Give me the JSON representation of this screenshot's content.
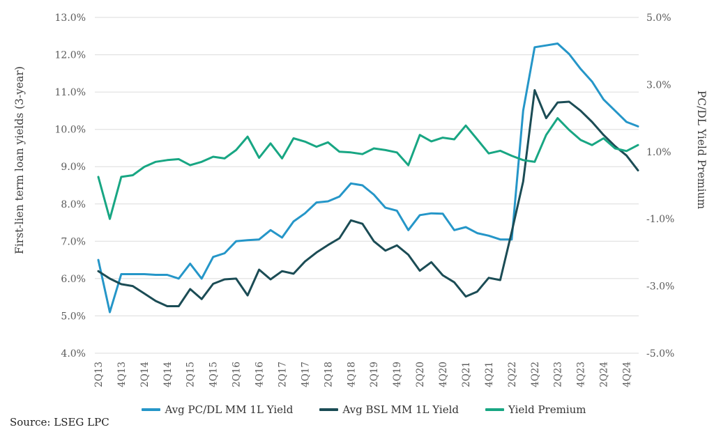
{
  "chart_data": {
    "type": "line",
    "grid": "horizontal",
    "legend_position": "bottom",
    "x_categories": [
      "2Q13",
      "3Q13",
      "4Q13",
      "1Q14",
      "2Q14",
      "3Q14",
      "4Q14",
      "1Q15",
      "2Q15",
      "3Q15",
      "4Q15",
      "1Q16",
      "2Q16",
      "3Q16",
      "4Q16",
      "1Q17",
      "2Q17",
      "3Q17",
      "4Q17",
      "1Q18",
      "2Q18",
      "3Q18",
      "4Q18",
      "1Q19",
      "2Q19",
      "3Q19",
      "4Q19",
      "1Q20",
      "2Q20",
      "3Q20",
      "4Q20",
      "1Q21",
      "2Q21",
      "3Q21",
      "4Q21",
      "1Q22",
      "2Q22",
      "3Q22",
      "4Q22",
      "1Q23",
      "2Q23",
      "3Q23",
      "4Q23",
      "1Q24",
      "2Q24",
      "3Q24",
      "4Q24",
      "1Q25"
    ],
    "x_tick_labels": [
      "2Q13",
      "4Q13",
      "2Q14",
      "4Q14",
      "2Q15",
      "4Q15",
      "2Q16",
      "4Q16",
      "2Q17",
      "4Q17",
      "2Q18",
      "4Q18",
      "2Q19",
      "4Q19",
      "2Q20",
      "4Q20",
      "2Q21",
      "4Q21",
      "2Q22",
      "4Q22",
      "2Q23",
      "4Q23",
      "2Q24",
      "4Q24"
    ],
    "x_tick_every": 2,
    "left_axis": {
      "label": "First-lien term loan yields (3-year)",
      "min": 4,
      "max": 13,
      "step": 1,
      "ticks": [
        "13.0%",
        "12.0%",
        "11.0%",
        "10.0%",
        "9.0%",
        "8.0%",
        "7.0%",
        "6.0%",
        "5.0%",
        "4.0%"
      ]
    },
    "right_axis": {
      "label": "PC/DL Yield Premium",
      "min": -5,
      "max": 5,
      "step": 2,
      "ticks": [
        "5.0%",
        "3.0%",
        "1.0%",
        "-1.0%",
        "-3.0%",
        "-5.0%"
      ]
    },
    "series": [
      {
        "name": "Avg PC/DL MM 1L Yield",
        "color": "#2596c8",
        "axis": "left",
        "values": [
          6.5,
          5.1,
          6.12,
          6.12,
          6.12,
          6.1,
          6.1,
          6.0,
          6.4,
          6.0,
          6.58,
          6.68,
          7.0,
          7.03,
          7.05,
          7.3,
          7.1,
          7.53,
          7.75,
          8.04,
          8.07,
          8.2,
          8.55,
          8.5,
          8.25,
          7.9,
          7.82,
          7.3,
          7.7,
          7.75,
          7.74,
          7.3,
          7.38,
          7.22,
          7.15,
          7.05,
          7.05,
          10.5,
          12.2,
          12.25,
          12.3,
          12.02,
          11.62,
          11.28,
          10.8,
          10.5,
          10.2,
          10.08
        ]
      },
      {
        "name": "Avg BSL MM 1L Yield",
        "color": "#1b4c55",
        "axis": "left",
        "values": [
          6.2,
          6.0,
          5.85,
          5.8,
          5.6,
          5.4,
          5.26,
          5.26,
          5.72,
          5.45,
          5.86,
          5.98,
          6.0,
          5.55,
          6.24,
          5.98,
          6.2,
          6.13,
          6.46,
          6.7,
          6.9,
          7.08,
          7.56,
          7.47,
          7.0,
          6.75,
          6.89,
          6.64,
          6.21,
          6.44,
          6.09,
          5.9,
          5.52,
          5.65,
          6.02,
          5.96,
          7.25,
          8.6,
          11.05,
          10.3,
          10.72,
          10.74,
          10.5,
          10.2,
          9.85,
          9.55,
          9.3,
          8.9
        ]
      },
      {
        "name": "Yield Premium",
        "color": "#18a683",
        "axis": "right",
        "values": [
          0.25,
          -1.0,
          0.25,
          0.3,
          0.55,
          0.7,
          0.75,
          0.78,
          0.6,
          0.7,
          0.85,
          0.8,
          1.05,
          1.45,
          0.82,
          1.25,
          0.8,
          1.4,
          1.3,
          1.15,
          1.28,
          1.0,
          0.98,
          0.93,
          1.1,
          1.05,
          0.98,
          0.6,
          1.5,
          1.31,
          1.42,
          1.37,
          1.78,
          1.37,
          0.95,
          1.03,
          0.88,
          0.75,
          0.7,
          1.5,
          2.0,
          1.65,
          1.35,
          1.2,
          1.4,
          1.1,
          1.02,
          1.2
        ]
      }
    ]
  },
  "source": {
    "text": "Source: LSEG LPC"
  },
  "colors": {
    "background": "#ffffff",
    "gridline": "#dbdbdb",
    "tick_text": "#595959",
    "axis_title_text": "#3f3f3f",
    "legend_text": "#333333"
  }
}
